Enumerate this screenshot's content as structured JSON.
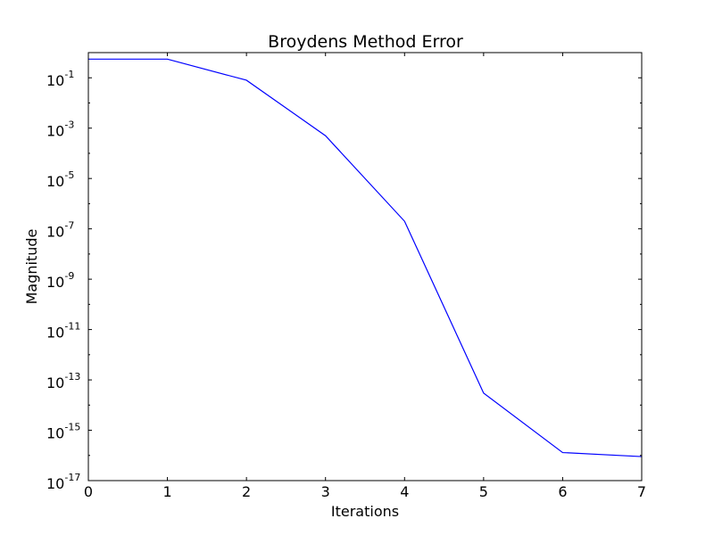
{
  "chart_data": {
    "type": "line",
    "title": "Broydens Method Error",
    "xlabel": "Iterations",
    "ylabel": "Magnitude",
    "xlim": [
      0,
      7
    ],
    "ylim": [
      1e-17,
      1
    ],
    "yscale": "log",
    "grid": false,
    "x_ticks": [
      "0",
      "1",
      "2",
      "3",
      "4",
      "5",
      "6",
      "7"
    ],
    "y_ticks": [
      {
        "base": "10",
        "exp": "-1",
        "value": 0.1
      },
      {
        "base": "10",
        "exp": "-3",
        "value": 0.001
      },
      {
        "base": "10",
        "exp": "-5",
        "value": 1e-05
      },
      {
        "base": "10",
        "exp": "-7",
        "value": 1e-07
      },
      {
        "base": "10",
        "exp": "-9",
        "value": 1e-09
      },
      {
        "base": "10",
        "exp": "-11",
        "value": 1e-11
      },
      {
        "base": "10",
        "exp": "-13",
        "value": 1e-13
      },
      {
        "base": "10",
        "exp": "-15",
        "value": 1e-15
      },
      {
        "base": "10",
        "exp": "-17",
        "value": 1e-17
      }
    ],
    "series": [
      {
        "color": "#0000ff",
        "x": [
          0,
          1,
          2,
          3,
          4,
          5,
          6,
          7
        ],
        "values": [
          0.55,
          0.55,
          0.08,
          0.0005,
          2e-07,
          3e-14,
          1.3e-16,
          9e-17
        ]
      }
    ]
  }
}
